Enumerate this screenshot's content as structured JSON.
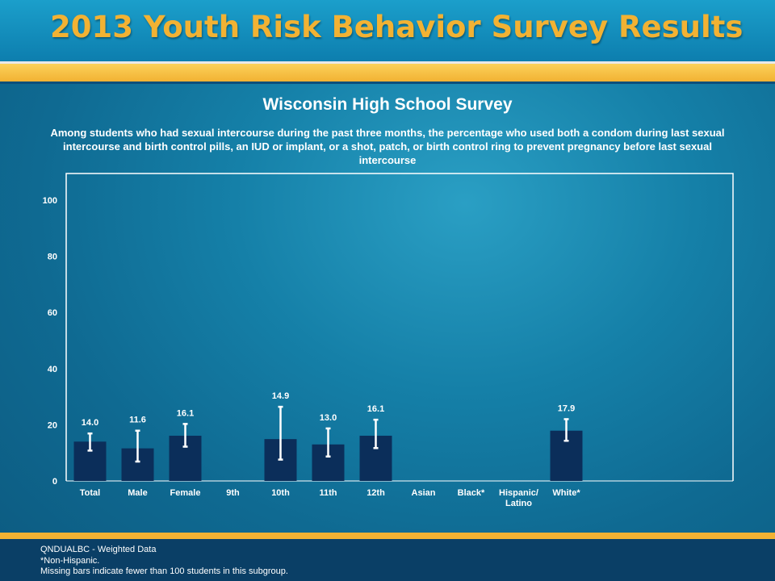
{
  "header": {
    "title": "2013 Youth Risk Behavior Survey Results"
  },
  "colors": {
    "bar": "#0b2e5a",
    "header_title": "#f2b233",
    "error_bar": "#ffffff",
    "accent_gold": "#f2b233"
  },
  "chart_data": {
    "type": "bar",
    "title": "Wisconsin High School Survey",
    "subtitle": "Among students who had sexual intercourse during the past three months, the percentage who used both a condom during last sexual intercourse and birth control pills, an IUD or implant, or a shot, patch, or birth control ring to prevent pregnancy before last sexual intercourse",
    "categories": [
      "Total",
      "Male",
      "Female",
      "9th",
      "10th",
      "11th",
      "12th",
      "Asian",
      "Black*",
      "Hispanic/ Latino",
      "White*"
    ],
    "values": [
      14.0,
      11.6,
      16.1,
      null,
      14.9,
      13.0,
      16.1,
      null,
      null,
      null,
      17.9
    ],
    "value_labels": [
      "14.0",
      "11.6",
      "16.1",
      "",
      "14.9",
      "13.0",
      "16.1",
      "",
      "",
      "",
      "17.9"
    ],
    "ci_low": [
      10.8,
      6.9,
      12.2,
      null,
      7.6,
      8.7,
      11.7,
      null,
      null,
      null,
      14.3
    ],
    "ci_high": [
      16.9,
      17.9,
      20.3,
      null,
      26.4,
      18.7,
      21.8,
      null,
      null,
      null,
      22.0
    ],
    "ylim": [
      0,
      100
    ],
    "yticks": [
      0,
      20,
      40,
      60,
      80,
      100
    ],
    "xlabel": "",
    "ylabel": "",
    "grid": false
  },
  "footer": {
    "line1": "QNDUALBC - Weighted Data",
    "line2": "*Non-Hispanic.",
    "line3": "Missing bars indicate fewer than 100 students in this subgroup."
  }
}
